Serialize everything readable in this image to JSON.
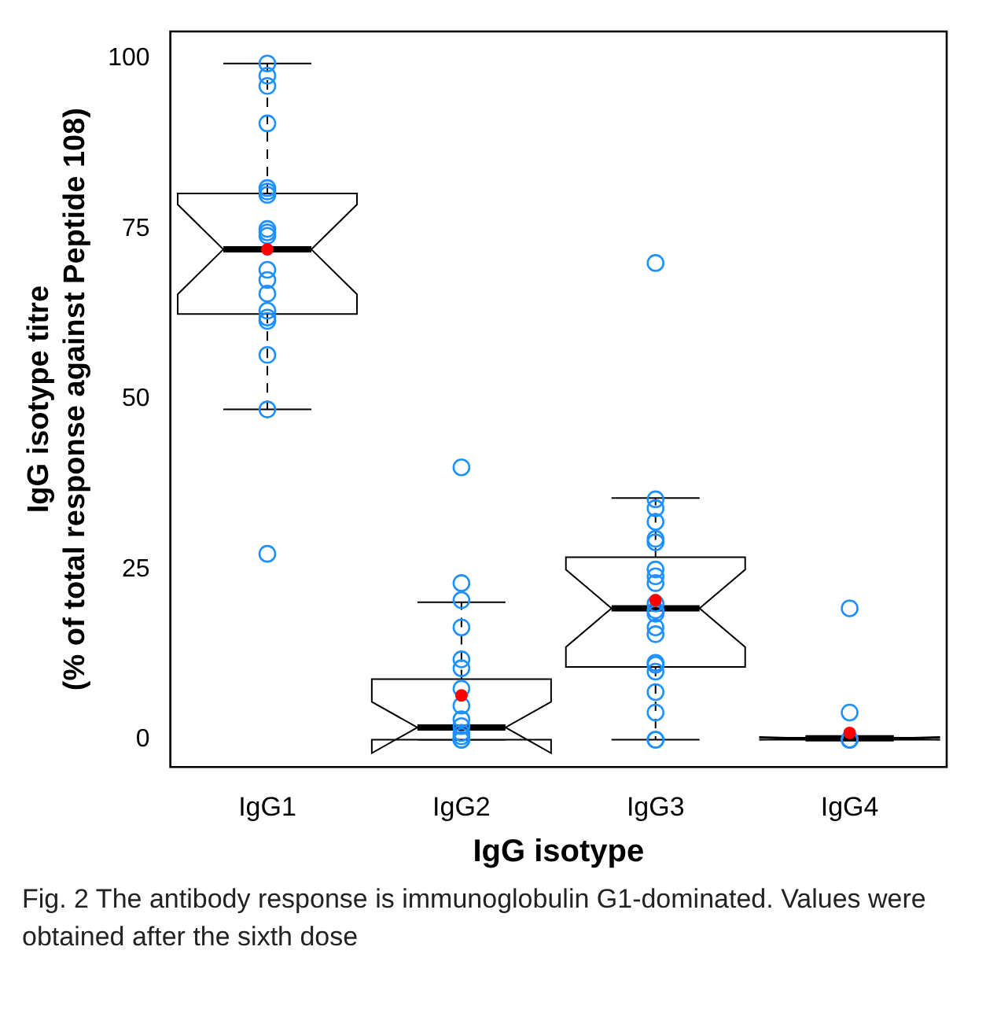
{
  "chart_data": {
    "type": "box",
    "xlabel": "IgG isotype",
    "ylabel": "IgG isotype titre\n(% of total response against Peptide 108)",
    "categories": [
      "IgG1",
      "IgG2",
      "IgG3",
      "IgG4"
    ],
    "ylim": [
      -4,
      104
    ],
    "yticks": [
      0,
      25,
      50,
      75,
      100
    ],
    "grid": false,
    "legend": false,
    "boxes": [
      {
        "low": 48.5,
        "q1": 62.5,
        "median": 72,
        "q3": 80.2,
        "high": 99.3,
        "mean": 72,
        "outliers": [
          27.3
        ]
      },
      {
        "low": 0,
        "q1": 0,
        "median": 1.8,
        "q3": 8.9,
        "high": 20.2,
        "mean": 6.5,
        "outliers": [
          40
        ]
      },
      {
        "low": 0,
        "q1": 10.7,
        "median": 19.3,
        "q3": 26.8,
        "high": 35.5,
        "mean": 20.5,
        "outliers": [
          70
        ]
      },
      {
        "low": 0,
        "q1": 0,
        "median": 0.2,
        "q3": 0.3,
        "high": 0.5,
        "mean": 1,
        "outliers": [
          19.3,
          4
        ]
      }
    ],
    "series": [
      {
        "type": "scatter",
        "color": "#1e90ff",
        "marker": "circle",
        "x": [
          "IgG1",
          "IgG1",
          "IgG1",
          "IgG1",
          "IgG1",
          "IgG1",
          "IgG1",
          "IgG1",
          "IgG1",
          "IgG1",
          "IgG1",
          "IgG1",
          "IgG1",
          "IgG1",
          "IgG1",
          "IgG1",
          "IgG1",
          "IgG1",
          "IgG2",
          "IgG2",
          "IgG2",
          "IgG2",
          "IgG2",
          "IgG2",
          "IgG2",
          "IgG2",
          "IgG2",
          "IgG2",
          "IgG2",
          "IgG2",
          "IgG2",
          "IgG2",
          "IgG3",
          "IgG3",
          "IgG3",
          "IgG3",
          "IgG3",
          "IgG3",
          "IgG3",
          "IgG3",
          "IgG3",
          "IgG3",
          "IgG3",
          "IgG3",
          "IgG3",
          "IgG3",
          "IgG3",
          "IgG3",
          "IgG3",
          "IgG3",
          "IgG3",
          "IgG3",
          "IgG4",
          "IgG4",
          "IgG4",
          "IgG4",
          "IgG4"
        ],
        "values": [
          99.3,
          97.5,
          96,
          90.5,
          81,
          80.5,
          80,
          75,
          74.5,
          74,
          69,
          67.5,
          65.5,
          63,
          62,
          61.5,
          56.5,
          48.5,
          23,
          20.5,
          16.5,
          11.8,
          10.5,
          7.5,
          5,
          3,
          2,
          1,
          0.5,
          0,
          0,
          0,
          35.3,
          34,
          32,
          29.5,
          29,
          25,
          24,
          23,
          20,
          19,
          18.5,
          16.5,
          15.5,
          11.3,
          11,
          10,
          7,
          4,
          0,
          0,
          null,
          0,
          0,
          0,
          0
        ]
      }
    ],
    "annotations": [
      "Fig. 2 The antibody response is immunoglobulin G1-dominated. Values were obtained after the sixth dose"
    ]
  }
}
